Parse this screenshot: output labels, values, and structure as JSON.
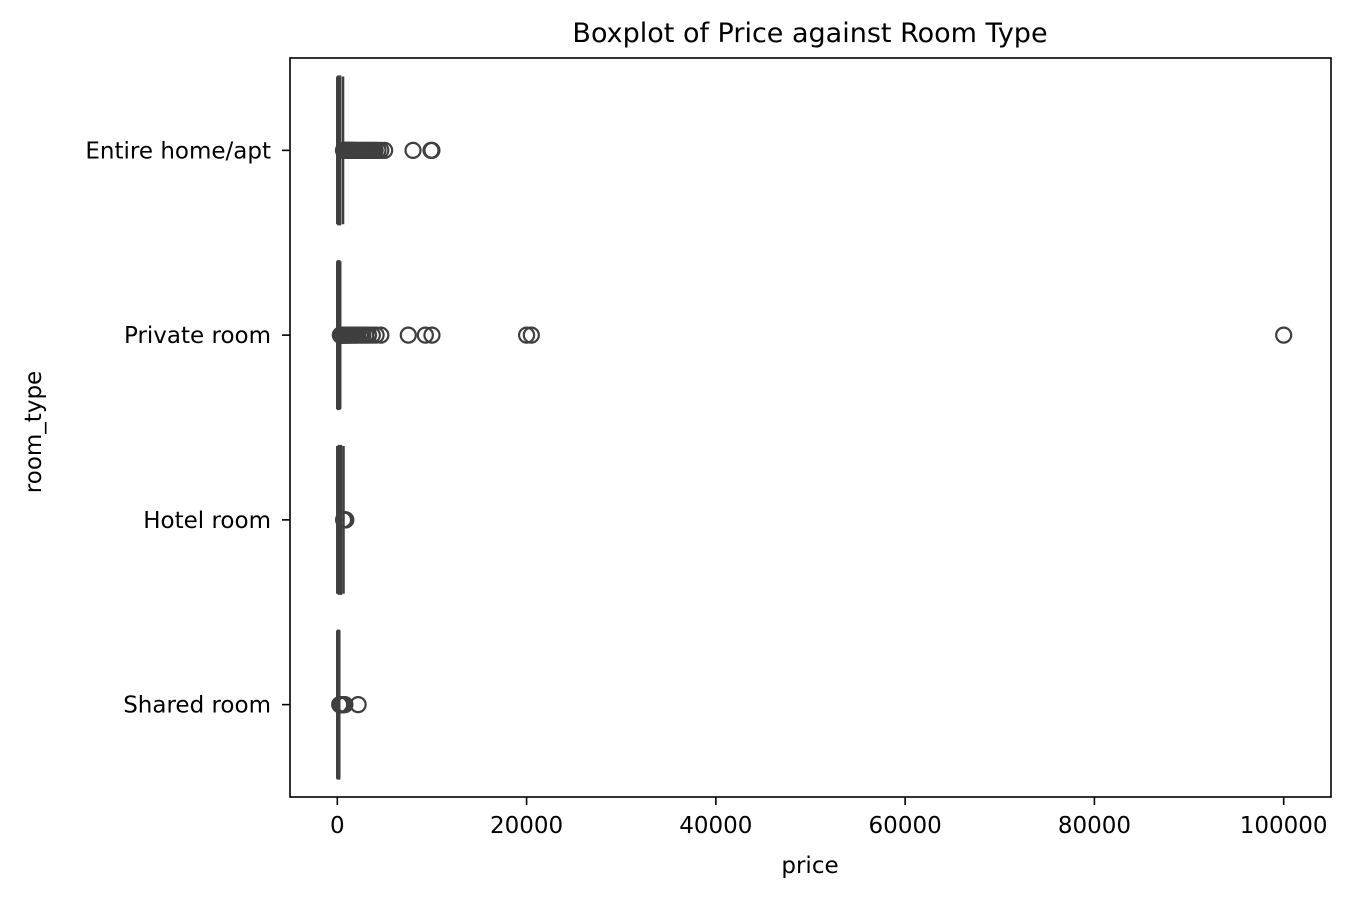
{
  "chart_data": {
    "type": "boxplot",
    "title": "Boxplot of Price against Room Type",
    "xlabel": "price",
    "ylabel": "room_type",
    "xlim": [
      -5000,
      105000
    ],
    "xticks": [
      0,
      20000,
      40000,
      60000,
      80000,
      100000
    ],
    "xtick_labels": [
      "0",
      "20000",
      "40000",
      "60000",
      "80000",
      "100000"
    ],
    "grid": false,
    "orientation": "horizontal",
    "box_color": "#3f3f3f",
    "categories": [
      "Entire home/apt",
      "Private room",
      "Hotel room",
      "Shared room"
    ],
    "boxes": [
      {
        "category": "Entire home/apt",
        "q1": 100,
        "median": 180,
        "q3": 300,
        "whisker_low": 0,
        "whisker_high": 600,
        "outliers": [
          650,
          700,
          760,
          820,
          880,
          950,
          1000,
          1100,
          1200,
          1300,
          1400,
          1500,
          1600,
          1750,
          1900,
          2000,
          2200,
          2400,
          2600,
          2800,
          3000,
          3200,
          3400,
          3600,
          3800,
          4000,
          4300,
          4600,
          5000,
          8000,
          9900,
          10000
        ]
      },
      {
        "category": "Private room",
        "q1": 60,
        "median": 100,
        "q3": 160,
        "whisker_low": 0,
        "whisker_high": 300,
        "outliers": [
          320,
          360,
          400,
          450,
          500,
          560,
          620,
          700,
          800,
          900,
          1000,
          1100,
          1200,
          1350,
          1500,
          1700,
          1900,
          2100,
          2400,
          2700,
          3000,
          3300,
          3700,
          4100,
          4600,
          7500,
          9300,
          10000,
          20000,
          20500,
          100000
        ]
      },
      {
        "category": "Hotel room",
        "q1": 150,
        "median": 250,
        "q3": 400,
        "whisker_low": 0,
        "whisker_high": 650,
        "outliers": [
          660,
          700,
          750,
          800,
          850,
          900
        ]
      },
      {
        "category": "Shared room",
        "q1": 40,
        "median": 60,
        "q3": 100,
        "whisker_low": 0,
        "whisker_high": 200,
        "outliers": [
          250,
          300,
          350,
          400,
          450,
          500,
          600,
          700,
          800,
          2200
        ]
      }
    ]
  }
}
